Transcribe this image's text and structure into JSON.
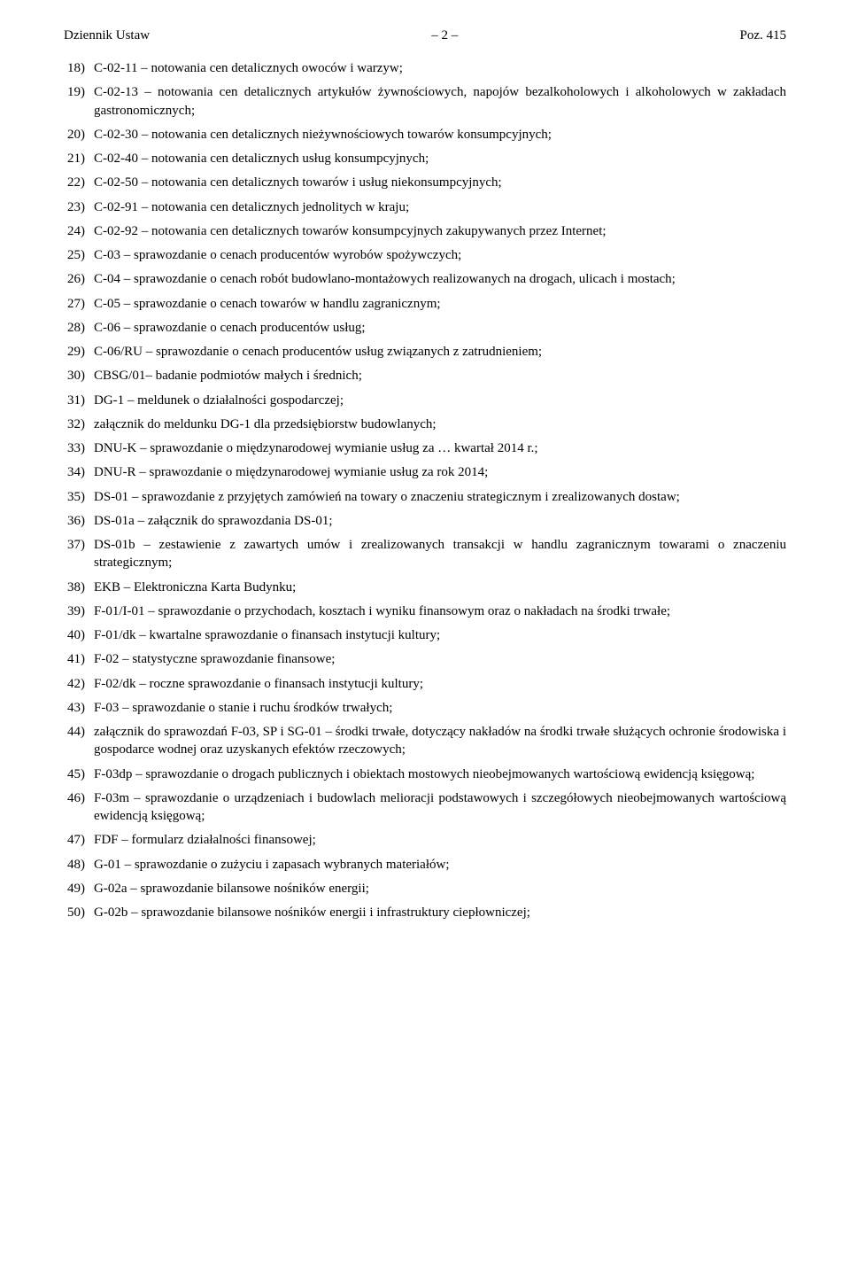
{
  "header": {
    "left": "Dziennik Ustaw",
    "center": "– 2 –",
    "right": "Poz. 415"
  },
  "items": [
    {
      "num": "18)",
      "text": "C-02-11 – notowania cen detalicznych owoców i warzyw;"
    },
    {
      "num": "19)",
      "text": "C-02-13 – notowania cen detalicznych artykułów żywnościowych, napojów bezalkoholowych i alkoholowych w zakładach gastronomicznych;"
    },
    {
      "num": "20)",
      "text": "C-02-30 – notowania cen detalicznych nieżywnościowych towarów konsumpcyjnych;"
    },
    {
      "num": "21)",
      "text": "C-02-40 – notowania cen detalicznych usług konsumpcyjnych;"
    },
    {
      "num": "22)",
      "text": "C-02-50 – notowania cen detalicznych towarów i usług niekonsumpcyjnych;"
    },
    {
      "num": "23)",
      "text": "C-02-91 – notowania cen detalicznych jednolitych w kraju;"
    },
    {
      "num": "24)",
      "text": "C-02-92 – notowania cen detalicznych towarów konsumpcyjnych zakupywanych przez Internet;"
    },
    {
      "num": "25)",
      "text": "C-03 – sprawozdanie o cenach producentów wyrobów spożywczych;"
    },
    {
      "num": "26)",
      "text": "C-04 – sprawozdanie o cenach robót budowlano-montażowych realizowanych na drogach, ulicach i mostach;"
    },
    {
      "num": "27)",
      "text": "C-05 – sprawozdanie o cenach towarów w handlu zagranicznym;"
    },
    {
      "num": "28)",
      "text": "C-06 – sprawozdanie o cenach producentów usług;"
    },
    {
      "num": "29)",
      "text": "C-06/RU – sprawozdanie o cenach producentów usług związanych z zatrudnieniem;"
    },
    {
      "num": "30)",
      "text": "CBSG/01– badanie podmiotów małych i średnich;"
    },
    {
      "num": "31)",
      "text": "DG-1 – meldunek o działalności gospodarczej;"
    },
    {
      "num": "32)",
      "text": "załącznik do meldunku DG-1 dla przedsiębiorstw budowlanych;"
    },
    {
      "num": "33)",
      "text": "DNU-K – sprawozdanie o międzynarodowej wymianie usług za … kwartał 2014 r.;"
    },
    {
      "num": "34)",
      "text": "DNU-R – sprawozdanie o międzynarodowej wymianie usług za rok 2014;"
    },
    {
      "num": "35)",
      "text": "DS-01 – sprawozdanie z przyjętych zamówień na towary o znaczeniu strategicznym i zrealizowanych dostaw;"
    },
    {
      "num": "36)",
      "text": "DS-01a – załącznik do sprawozdania DS-01;"
    },
    {
      "num": "37)",
      "text": "DS-01b – zestawienie z zawartych umów i zrealizowanych transakcji w handlu zagranicznym towarami o znaczeniu strategicznym;"
    },
    {
      "num": "38)",
      "text": "EKB – Elektroniczna Karta Budynku;"
    },
    {
      "num": "39)",
      "text": "F-01/I-01 – sprawozdanie o przychodach, kosztach i wyniku finansowym oraz o nakładach na środki trwałe;"
    },
    {
      "num": "40)",
      "text": "F-01/dk – kwartalne sprawozdanie o finansach instytucji kultury;"
    },
    {
      "num": "41)",
      "text": "F-02 – statystyczne sprawozdanie finansowe;"
    },
    {
      "num": "42)",
      "text": "F-02/dk – roczne sprawozdanie o finansach instytucji kultury;"
    },
    {
      "num": "43)",
      "text": "F-03 – sprawozdanie o stanie i ruchu środków trwałych;"
    },
    {
      "num": "44)",
      "text": "załącznik do sprawozdań F-03, SP i SG-01 – środki trwałe, dotyczący nakładów na środki trwałe służących ochronie środowiska i gospodarce wodnej oraz uzyskanych efektów rzeczowych;"
    },
    {
      "num": "45)",
      "text": "F-03dp – sprawozdanie o drogach publicznych i obiektach mostowych nieobejmowanych wartościową ewidencją księgową;"
    },
    {
      "num": "46)",
      "text": "F-03m – sprawozdanie o urządzeniach i budowlach melioracji podstawowych i szczegółowych nieobejmowanych wartościową ewidencją księgową;"
    },
    {
      "num": "47)",
      "text": "FDF – formularz działalności finansowej;"
    },
    {
      "num": "48)",
      "text": "G-01 – sprawozdanie o zużyciu i zapasach wybranych materiałów;"
    },
    {
      "num": "49)",
      "text": "G-02a – sprawozdanie bilansowe nośników energii;"
    },
    {
      "num": "50)",
      "text": "G-02b – sprawozdanie bilansowe nośników energii i infrastruktury ciepłowniczej;"
    }
  ]
}
